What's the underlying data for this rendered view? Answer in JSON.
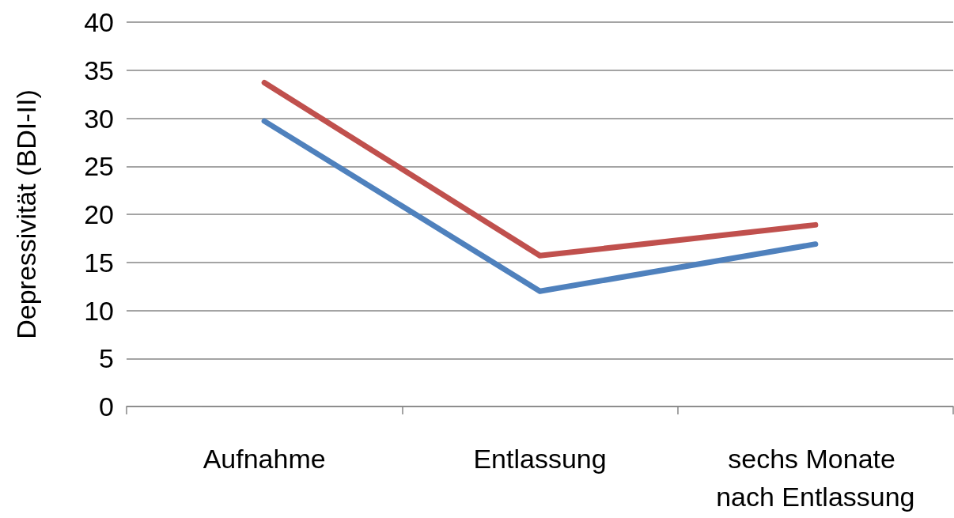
{
  "chart_data": {
    "type": "line",
    "ylabel": "Depressivität (BDI-II)",
    "categories": [
      "Aufnahme",
      "Entlassung",
      "sechs Monate nach Entlassung"
    ],
    "series": [
      {
        "color": "#c0504d",
        "values": [
          33.7,
          15.7,
          18.9
        ]
      },
      {
        "color": "#4f81bd",
        "values": [
          29.7,
          12.0,
          16.9
        ]
      }
    ],
    "ylim": [
      0,
      40
    ],
    "yticks": [
      0,
      5,
      10,
      15,
      20,
      25,
      30,
      35,
      40
    ],
    "grid": "y",
    "marker": "none",
    "line_style": "solid"
  }
}
